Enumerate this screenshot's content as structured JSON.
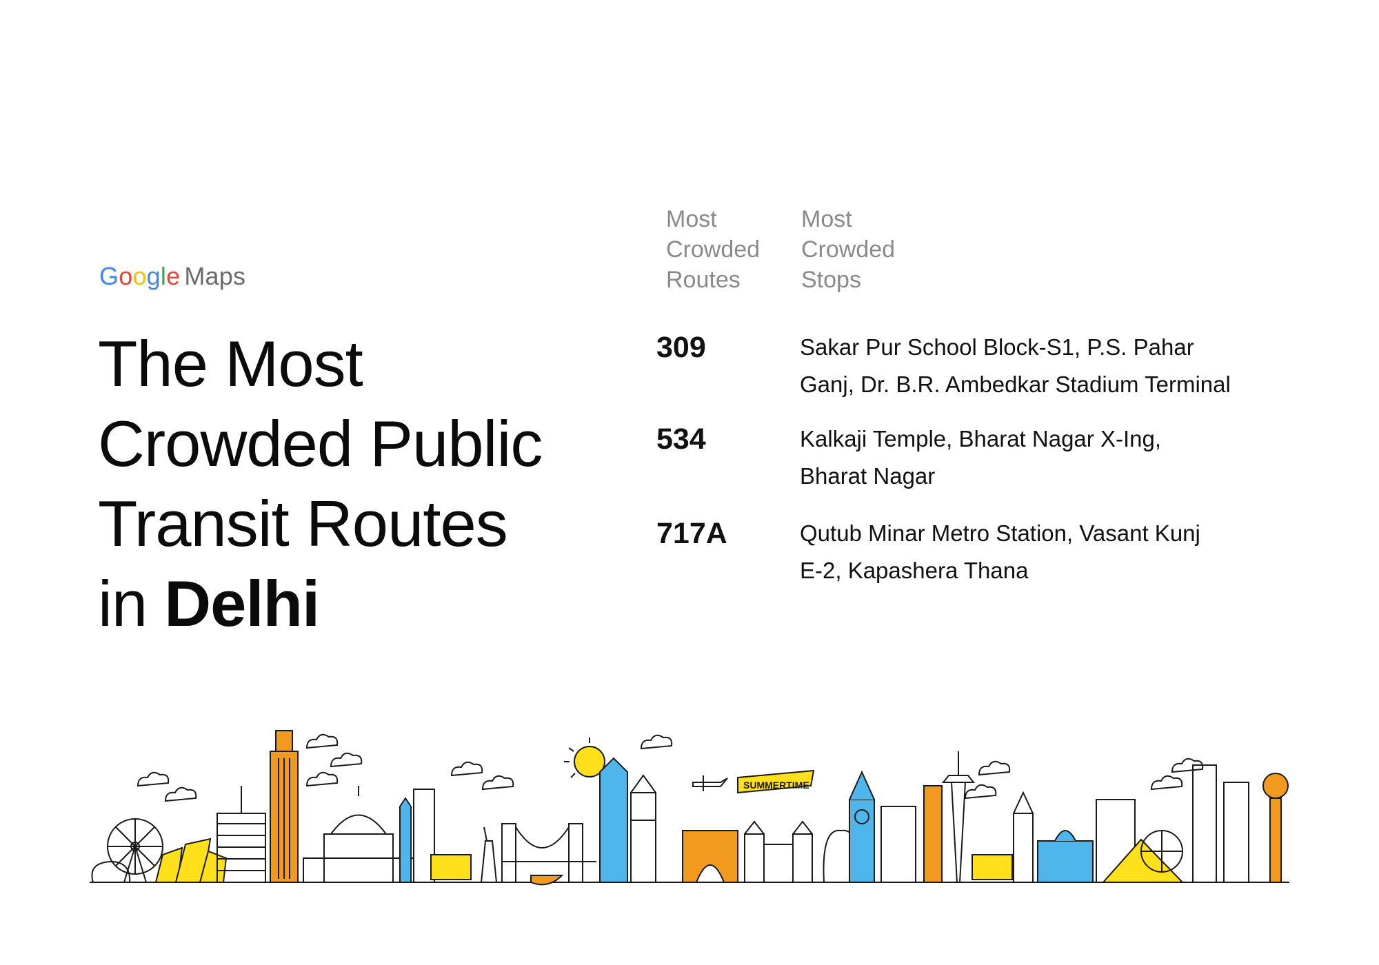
{
  "logo": {
    "google_letters": [
      {
        "ch": "G",
        "color": "#4285F4"
      },
      {
        "ch": "o",
        "color": "#EA4335"
      },
      {
        "ch": "o",
        "color": "#FBBC05"
      },
      {
        "ch": "g",
        "color": "#4285F4"
      },
      {
        "ch": "l",
        "color": "#34A853"
      },
      {
        "ch": "e",
        "color": "#EA4335"
      }
    ],
    "maps": "Maps"
  },
  "headline": {
    "line1": "The Most",
    "line2": "Crowded Public",
    "line3": "Transit Routes",
    "line4_prefix": "in ",
    "line4_city": "Delhi"
  },
  "columns": {
    "routes_header": [
      "Most",
      "Crowded",
      "Routes"
    ],
    "stops_header": [
      "Most",
      "Crowded",
      "Stops"
    ]
  },
  "rows": [
    {
      "route": "309",
      "stops": [
        "Sakar Pur School Block-S1, P.S. Pahar",
        "Ganj, Dr. B.R. Ambedkar Stadium Terminal"
      ]
    },
    {
      "route": "534",
      "stops": [
        "Kalkaji Temple, Bharat Nagar X-Ing,",
        "Bharat Nagar"
      ]
    },
    {
      "route": "717A",
      "stops": [
        "Qutub Minar Metro Station, Vasant Kunj",
        "E-2, Kapashera Thana"
      ]
    }
  ],
  "illustration": {
    "banner_text": "SUMMERTIME",
    "colors": {
      "yellow": "#FFE01B",
      "orange": "#F29A1E",
      "blue": "#4FB6EC",
      "line": "#1a1a1a"
    }
  }
}
